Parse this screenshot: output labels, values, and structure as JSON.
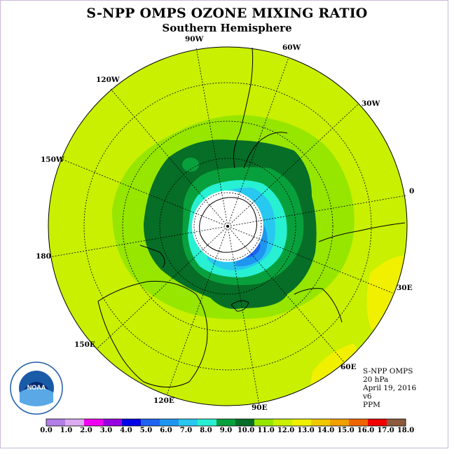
{
  "title": "S-NPP OMPS OZONE MIXING RATIO",
  "subtitle": "Southern Hemisphere",
  "longitude_labels": {
    "lon_90w": "90W",
    "lon_60w": "60W",
    "lon_30w": "30W",
    "lon_0": "0",
    "lon_30e": "30E",
    "lon_60e": "60E",
    "lon_90e": "90E",
    "lon_120e": "120E",
    "lon_150e": "150E",
    "lon_180": "180",
    "lon_150w": "150W",
    "lon_120w": "120W"
  },
  "info": {
    "instrument": "S-NPP OMPS",
    "pressure": "20 hPa",
    "date": "April 19, 2016",
    "version": "v6",
    "units": "PPM"
  },
  "logo_text": "NOAA",
  "colorbar": {
    "ticks": [
      "0.0",
      "1.0",
      "2.0",
      "3.0",
      "4.0",
      "5.0",
      "6.0",
      "7.0",
      "8.0",
      "9.0",
      "10.0",
      "11.0",
      "12.0",
      "13.0",
      "14.0",
      "15.0",
      "16.0",
      "17.0",
      "18.0"
    ],
    "colors": [
      "#b47ee8",
      "#dcaaf0",
      "#f000f0",
      "#9600e0",
      "#0000e8",
      "#1e64f0",
      "#1e96f0",
      "#28c8f0",
      "#28f0d2",
      "#08a03c",
      "#066e26",
      "#96e600",
      "#c8f000",
      "#f0f000",
      "#f0c800",
      "#f0a000",
      "#f06400",
      "#f00000",
      "#8c5a3c"
    ]
  },
  "chart_data": {
    "type": "heatmap",
    "projection": "south-polar-stereographic",
    "variable": "ozone mixing ratio",
    "units": "PPM",
    "level": "20 hPa",
    "date": "April 19, 2016",
    "value_range": [
      0,
      18
    ],
    "regions": [
      {
        "value_range": [
          11,
          12
        ],
        "color": "#c8f000",
        "extent": "outer hemisphere (background)"
      },
      {
        "value_range": [
          12,
          13
        ],
        "color": "#f0f000",
        "extent": "small patches near 30E-60E"
      },
      {
        "value_range": [
          10,
          11
        ],
        "color": "#96e600",
        "extent": "ring around the polar vortex"
      },
      {
        "value_range": [
          9,
          10
        ],
        "color": "#066e26",
        "extent": "broad collar around Antarctica"
      },
      {
        "value_range": [
          8,
          9
        ],
        "color": "#08a03c",
        "extent": "inner collar"
      },
      {
        "value_range": [
          7,
          8
        ],
        "color": "#28f0d2",
        "extent": "vortex edge"
      },
      {
        "value_range": [
          6,
          7
        ],
        "color": "#28c8f0",
        "extent": "vortex edge"
      },
      {
        "value_range": [
          5,
          6
        ],
        "color": "#1e96f0",
        "extent": "near pole, 30E-90E sector"
      },
      {
        "value_range": [
          4,
          5
        ],
        "color": "#1e64f0",
        "extent": "near pole, small patch"
      }
    ]
  }
}
